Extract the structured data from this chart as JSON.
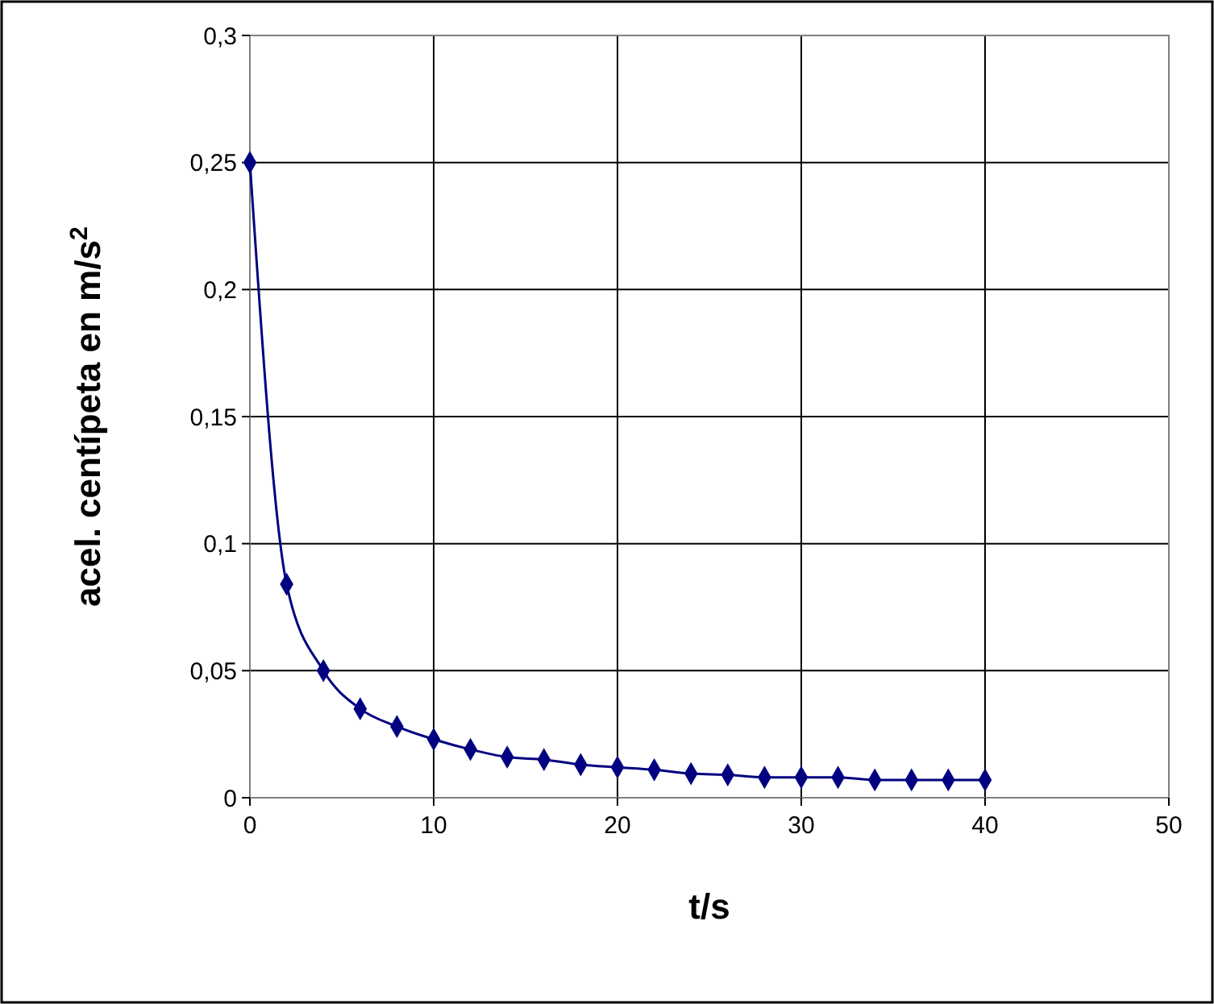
{
  "chart_data": {
    "type": "line",
    "xlabel": "t/s",
    "ylabel": "acel. centípeta en m/s$^{2}$",
    "x": [
      0,
      2,
      4,
      6,
      8,
      10,
      12,
      14,
      16,
      18,
      20,
      22,
      24,
      26,
      28,
      30,
      32,
      34,
      36,
      38,
      40
    ],
    "series": [
      {
        "color": "#000080",
        "values": [
          0.25,
          0.084,
          0.05,
          0.035,
          0.028,
          0.023,
          0.019,
          0.016,
          0.015,
          0.013,
          0.012,
          0.011,
          0.0095,
          0.009,
          0.008,
          0.008,
          0.008,
          0.007,
          0.007,
          0.007,
          0.007
        ]
      }
    ],
    "xlim": [
      0,
      50
    ],
    "xticks": [
      0,
      10,
      20,
      30,
      40,
      50
    ],
    "ylim": [
      0,
      0.3
    ],
    "yticks": [
      0,
      {
        "value": 0.05,
        "label": "0,05"
      },
      {
        "value": 0.1,
        "label": "0,1"
      },
      {
        "value": 0.15,
        "label": "0,15"
      },
      {
        "value": 0.2,
        "label": "0,2"
      },
      {
        "value": 0.25,
        "label": "0,25"
      },
      {
        "value": 0.3,
        "label": "0,3"
      }
    ],
    "grid": true,
    "marker": "diamond",
    "line_style": "solid"
  }
}
